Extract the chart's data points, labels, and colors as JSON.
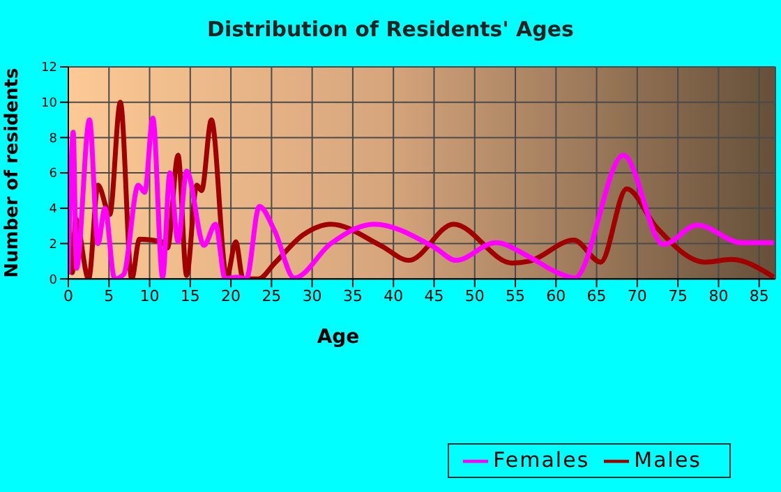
{
  "chart_data": {
    "type": "line",
    "title": "Distribution of Residents' Ages",
    "xlabel": "Age",
    "ylabel": "Number of residents",
    "xlim": [
      0,
      87
    ],
    "xticks": [
      0,
      5,
      10,
      15,
      20,
      25,
      30,
      35,
      40,
      45,
      50,
      55,
      60,
      65,
      70,
      75,
      80,
      85
    ],
    "ylim": [
      0,
      12
    ],
    "yticks": [
      0,
      2,
      4,
      6,
      8,
      10,
      12
    ],
    "grid": true,
    "legend": "bottom right",
    "marker": "none",
    "line_style": "solid",
    "series": [
      {
        "name": "Males",
        "color": "#a00000",
        "x": [
          0,
          0.5,
          0.9,
          2.5,
          3.65,
          5.1,
          6.4,
          7.8,
          8.75,
          11.5,
          12.2,
          13.5,
          14.55,
          15.8,
          16.4,
          17.6,
          19.5,
          20.6,
          21.5,
          23.4,
          25.4,
          28.9,
          32.3,
          38.4,
          41.9,
          47.4,
          54.6,
          56.7,
          62.2,
          65.5,
          68.7,
          72.3,
          78.4,
          81.6,
          86.8
        ],
        "values": [
          4.1,
          0.35,
          3.4,
          0,
          5.3,
          3.65,
          10,
          0,
          2.25,
          2.1,
          1.75,
          7,
          0.2,
          5.3,
          5,
          9,
          0.1,
          2.1,
          0,
          0,
          0.9,
          2.5,
          3.1,
          1.9,
          1.05,
          3.1,
          0.9,
          1,
          2.2,
          0.95,
          5.1,
          2.95,
          0.95,
          1.1,
          0.1
        ]
      },
      {
        "name": "Females",
        "color": "#ff00ff",
        "x": [
          0,
          0.6,
          1,
          2.6,
          3.65,
          4.5,
          5.7,
          6.8,
          8.6,
          9.4,
          10.4,
          11.6,
          12.5,
          13.5,
          14.55,
          16.7,
          18.1,
          19.3,
          20.75,
          21.9,
          23.5,
          25.4,
          27.8,
          32.3,
          37.6,
          45,
          47.7,
          52.6,
          56.7,
          60.2,
          62.3,
          68.3,
          73.2,
          77.4,
          82.8,
          86.8
        ],
        "values": [
          0.25,
          8.3,
          0.6,
          9,
          2,
          4,
          0,
          0.25,
          5.3,
          4.9,
          9.1,
          0.1,
          6,
          2.1,
          6.1,
          1.9,
          3.1,
          0,
          0.1,
          0,
          4.1,
          2.7,
          0.05,
          2,
          3.1,
          1.8,
          1.05,
          2.05,
          1.25,
          0.35,
          0.05,
          7,
          1.95,
          3.05,
          2.05,
          2.05
        ]
      }
    ]
  }
}
